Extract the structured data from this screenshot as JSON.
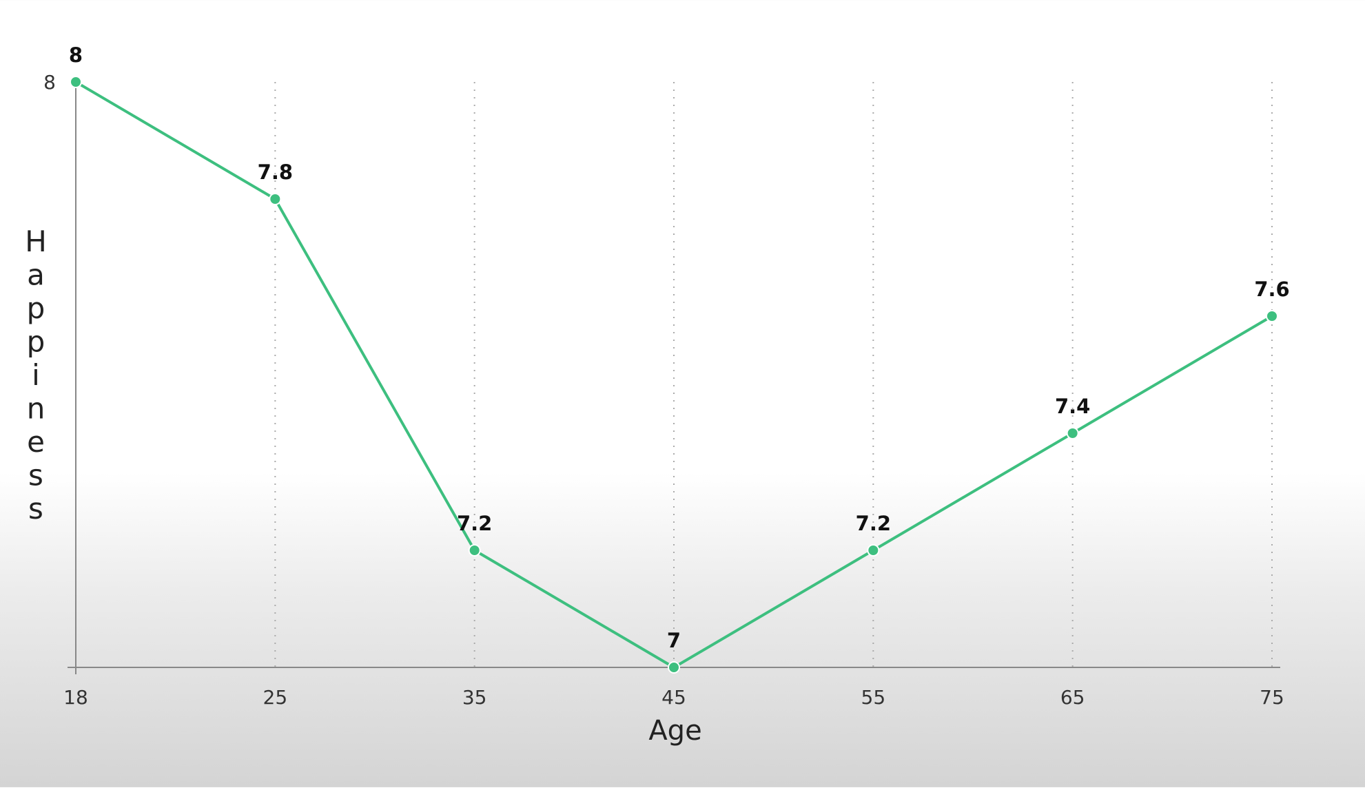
{
  "chart_data": {
    "type": "line",
    "x": [
      18,
      25,
      35,
      45,
      55,
      65,
      75
    ],
    "x_tick_labels": [
      "18",
      "25",
      "35",
      "45",
      "55",
      "65",
      "75"
    ],
    "series": [
      {
        "values": [
          8,
          7.8,
          7.2,
          7,
          7.2,
          7.4,
          7.6
        ]
      }
    ],
    "data_labels": [
      "8",
      "7.8",
      "7.2",
      "7",
      "7.2",
      "7.4",
      "7.6"
    ],
    "y_tick_labels": [
      "8"
    ],
    "y_ticks": [
      8
    ],
    "xlabel": "Age",
    "ylabel": "Happiness",
    "ylim": [
      7,
      8
    ],
    "x_spacing": "categorical",
    "grid": "vertical-dotted",
    "line_color": "#3dbf7f",
    "axis_color": "#888888",
    "grid_color": "#aaaaaa"
  }
}
